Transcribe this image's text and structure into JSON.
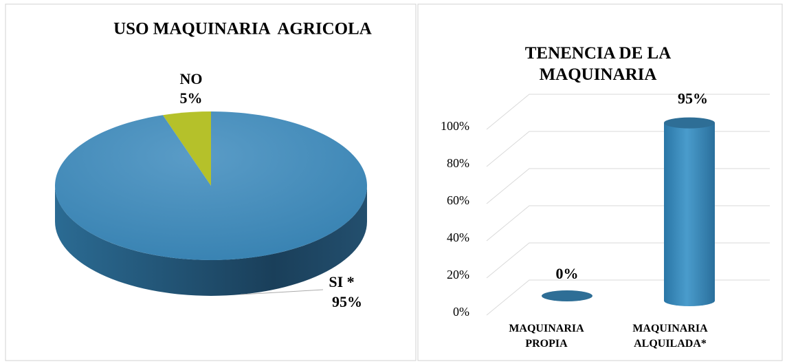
{
  "chart_data": [
    {
      "type": "pie",
      "title": "USO MAQUINARIA  AGRICOLA",
      "categories": [
        "NO",
        "SI *"
      ],
      "values": [
        5,
        95
      ],
      "value_labels": [
        "5%",
        "95%"
      ],
      "colors": [
        "#b5c12a",
        "#3f8bbb"
      ]
    },
    {
      "type": "bar",
      "title": "TENENCIA DE LA MAQUINARIA",
      "categories": [
        "MAQUINARIA PROPIA",
        "MAQUINARIA ALQUILADA*"
      ],
      "values": [
        0,
        95
      ],
      "value_labels": [
        "0%",
        "95%"
      ],
      "color": "#3a87b8",
      "ylim": [
        0,
        100
      ],
      "yticks": [
        {
          "value": 0,
          "label": "0%"
        },
        {
          "value": 20,
          "label": "20%"
        },
        {
          "value": 40,
          "label": "40%"
        },
        {
          "value": 60,
          "label": "60%"
        },
        {
          "value": 80,
          "label": "80%"
        },
        {
          "value": 100,
          "label": "100%"
        }
      ],
      "grid": true
    }
  ]
}
